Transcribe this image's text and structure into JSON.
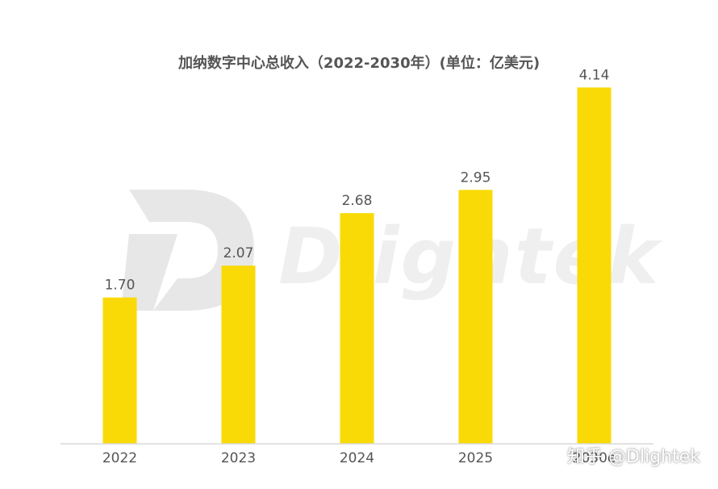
{
  "chart_data": {
    "type": "bar",
    "title": "加纳数字中心总收入（2022-2030年）(单位：亿美元)",
    "categories": [
      "2022",
      "2023",
      "2024",
      "2025",
      "2030e"
    ],
    "values": [
      1.7,
      2.07,
      2.68,
      2.95,
      4.14
    ],
    "value_labels": [
      "1.70",
      "2.07",
      "2.68",
      "2.95",
      "4.14"
    ],
    "xlabel": "",
    "ylabel": "",
    "ylim": [
      0,
      4.5
    ],
    "grid": false,
    "legend": "none",
    "colors": {
      "bar": "#F9DA06",
      "axis": "#d9d9d9",
      "label": "#555555"
    }
  },
  "watermark": {
    "brand": "Dlightek"
  },
  "credit": "知乎 @Dlightek"
}
